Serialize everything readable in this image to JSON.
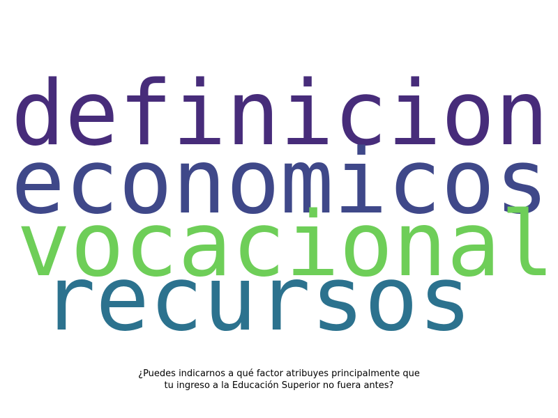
{
  "word_cloud": {
    "words": [
      {
        "text": "definicion",
        "color": "#472c7a"
      },
      {
        "text": "economicos",
        "color": "#3f4889"
      },
      {
        "text": "vocacional",
        "color": "#6ece58"
      },
      {
        "text": "recursos",
        "color": "#2c728e"
      }
    ]
  },
  "caption": {
    "line1": "¿Puedes indicarnos a qué factor atribuyes principalmente que",
    "line2": "tu ingreso a la Educación Superior no fuera antes?"
  }
}
